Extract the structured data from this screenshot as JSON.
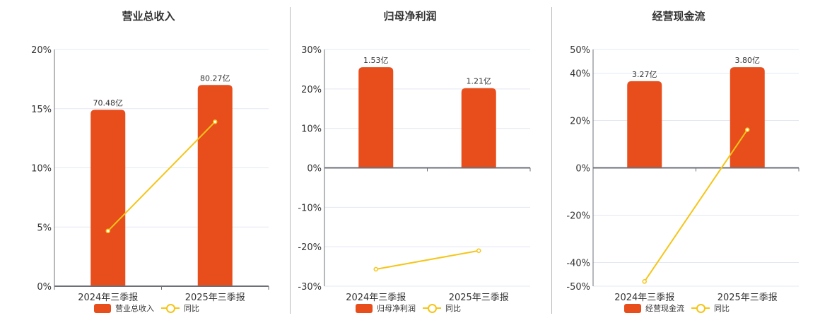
{
  "colors": {
    "bar": "#E84D1C",
    "line": "#F5C518",
    "grid": "#E3E8F0",
    "axis": "#6E7079"
  },
  "legend": {
    "line_label": "同比"
  },
  "chart_data": [
    {
      "type": "bar+line",
      "title": "营业总收入",
      "categories": [
        "2024年三季报",
        "2025年三季报"
      ],
      "series": [
        {
          "name": "营业总收入",
          "type": "bar",
          "values": [
            14.9,
            17.0
          ],
          "labels": [
            "70.48亿",
            "80.27亿"
          ]
        },
        {
          "name": "同比",
          "type": "line",
          "values": [
            4.67,
            13.89
          ]
        }
      ],
      "ylim": [
        0,
        20
      ],
      "yticks": [
        0,
        5,
        10,
        15,
        20
      ],
      "ytick_labels": [
        "0%",
        "5%",
        "10%",
        "15%",
        "20%"
      ],
      "legend_position": "bottom",
      "grid": true
    },
    {
      "type": "bar+line",
      "title": "归母净利润",
      "categories": [
        "2024年三季报",
        "2025年三季报"
      ],
      "series": [
        {
          "name": "归母净利润",
          "type": "bar",
          "values": [
            25.5,
            20.2
          ],
          "labels": [
            "1.53亿",
            "1.21亿"
          ]
        },
        {
          "name": "同比",
          "type": "line",
          "values": [
            -25.7,
            -21.0
          ]
        }
      ],
      "ylim": [
        -30,
        30
      ],
      "yticks": [
        -30,
        -20,
        -10,
        0,
        10,
        20,
        30
      ],
      "ytick_labels": [
        "-30%",
        "-20%",
        "-10%",
        "0%",
        "10%",
        "20%",
        "30%"
      ],
      "legend_position": "bottom",
      "grid": true
    },
    {
      "type": "bar+line",
      "title": "经营现金流",
      "categories": [
        "2024年三季报",
        "2025年三季报"
      ],
      "series": [
        {
          "name": "经营现金流",
          "type": "bar",
          "values": [
            36.6,
            42.5
          ],
          "labels": [
            "3.27亿",
            "3.80亿"
          ]
        },
        {
          "name": "同比",
          "type": "line",
          "values": [
            -48.0,
            16.1
          ]
        }
      ],
      "ylim": [
        -50,
        50
      ],
      "yticks": [
        -50,
        -40,
        -20,
        0,
        20,
        40,
        50
      ],
      "ytick_labels": [
        "-50%",
        "-40%",
        "-20%",
        "0%",
        "20%",
        "40%",
        "50%"
      ],
      "legend_position": "bottom",
      "grid": true
    }
  ]
}
